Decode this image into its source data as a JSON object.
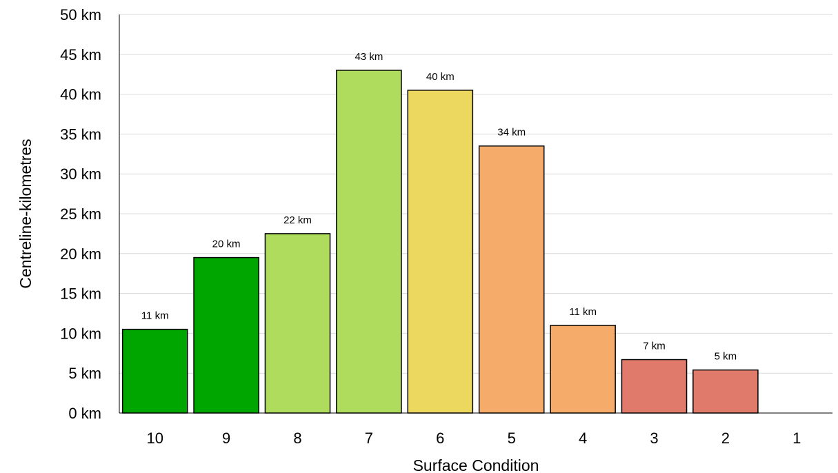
{
  "chart_data": {
    "type": "bar",
    "categories": [
      "10",
      "9",
      "8",
      "7",
      "6",
      "5",
      "4",
      "3",
      "2",
      "1"
    ],
    "values": [
      10.5,
      19.5,
      22.5,
      43,
      40.5,
      33.5,
      11,
      6.7,
      5.4,
      0
    ],
    "data_labels": [
      "11 km",
      "20 km",
      "22 km",
      "43 km",
      "40 km",
      "34 km",
      "11 km",
      "7 km",
      "5 km",
      ""
    ],
    "colors": [
      "#00a600",
      "#00a600",
      "#b0dc5e",
      "#b0dc5e",
      "#ecd75f",
      "#f5ac6b",
      "#f5ac6b",
      "#e07b6b",
      "#e07b6b",
      "#e07b6b"
    ],
    "xlabel": "Surface Condition",
    "ylabel": "Centreline-kilometres",
    "ylim": [
      0,
      50
    ],
    "yticks": [
      "0 km",
      "5 km",
      "10 km",
      "15 km",
      "20 km",
      "25 km",
      "30 km",
      "35 km",
      "40 km",
      "45 km",
      "50 km"
    ],
    "grid": true
  }
}
